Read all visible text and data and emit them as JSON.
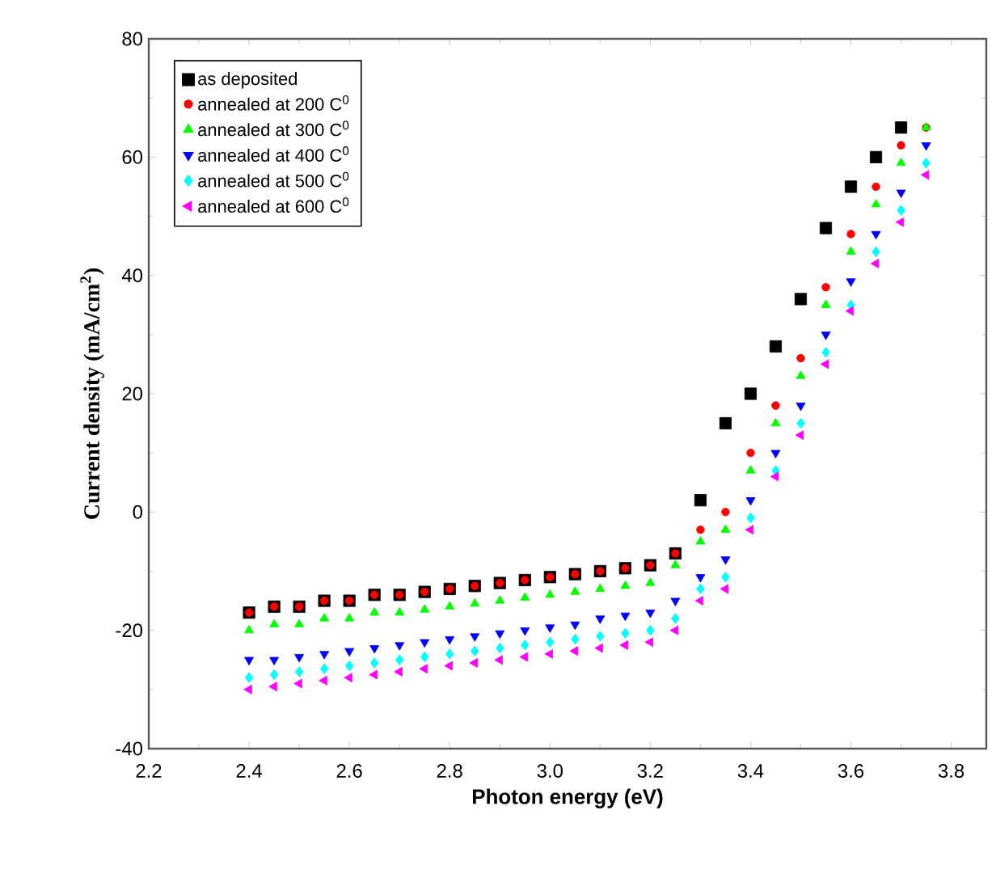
{
  "chart_data": {
    "type": "scatter",
    "xlabel": "Photon energy (eV)",
    "ylabel": "Current density (mA/cm$^{2}$)",
    "x": [
      2.4,
      2.45,
      2.5,
      2.55,
      2.6,
      2.65,
      2.7,
      2.75,
      2.8,
      2.85,
      2.9,
      2.95,
      3.0,
      3.05,
      3.1,
      3.15,
      3.2,
      3.25,
      3.3,
      3.35,
      3.4,
      3.45,
      3.5,
      3.55,
      3.6,
      3.65,
      3.7,
      3.75
    ],
    "xlim": [
      2.2,
      3.87
    ],
    "xticks": [
      2.2,
      2.4,
      2.6,
      2.8,
      {
        "value": 3.0,
        "label": "3.0"
      },
      3.2,
      3.4,
      3.6,
      3.8
    ],
    "ylim": [
      -40,
      80
    ],
    "yticks": [
      -40,
      -20,
      0,
      20,
      40,
      60,
      80
    ],
    "legend": "top left",
    "grid": false,
    "series": [
      {
        "name": "as deposited",
        "color": "#000000",
        "marker": "square",
        "values": [
          -17,
          -16,
          -16,
          -15,
          -15,
          -14,
          -14,
          -13.5,
          -13,
          -12.5,
          -12,
          -11.5,
          -11,
          -10.5,
          -10,
          -9.5,
          -9,
          -7,
          2,
          15,
          20,
          28,
          36,
          48,
          55,
          60,
          65,
          null
        ]
      },
      {
        "name": "annealed at 200 C$^{0}$",
        "color": "#ff0000",
        "marker": "circle",
        "values": [
          -17,
          -16,
          -16,
          -15,
          -15,
          -14,
          -14,
          -13.5,
          -13,
          -12.5,
          -12,
          -11.5,
          -11,
          -10.5,
          -10,
          -9.5,
          -9,
          -7,
          -3,
          0,
          10,
          18,
          26,
          38,
          47,
          55,
          62,
          65
        ]
      },
      {
        "name": "annealed at 300 C$^{0}$",
        "color": "#00ff00",
        "marker": "triangle",
        "values": [
          -20,
          -19,
          -19,
          -18,
          -18,
          -17,
          -17,
          -16.5,
          -16,
          -15.5,
          -15,
          -14.5,
          -14,
          -13.5,
          -13,
          -12.5,
          -12,
          -9,
          -5,
          -3,
          7,
          15,
          23,
          35,
          44,
          52,
          59,
          65
        ]
      },
      {
        "name": "annealed at 400 C$^{0}$",
        "color": "#0000ff",
        "marker": "triangle-down",
        "values": [
          -25,
          -25,
          -24.5,
          -24,
          -23.5,
          -23,
          -22.5,
          -22,
          -21.5,
          -21,
          -20.5,
          -20,
          -19.5,
          -19,
          -18,
          -17.5,
          -17,
          -15,
          -11,
          -8,
          2,
          10,
          18,
          30,
          39,
          47,
          54,
          62
        ]
      },
      {
        "name": "annealed at 500 C$^{0}$",
        "color": "#00ffff",
        "marker": "diamond",
        "values": [
          -28,
          -27.5,
          -27,
          -26.5,
          -26,
          -25.5,
          -25,
          -24.5,
          -24,
          -23.5,
          -23,
          -22.5,
          -22,
          -21.5,
          -21,
          -20.5,
          -20,
          -18,
          -13,
          -11,
          -1,
          7,
          15,
          27,
          35,
          44,
          51,
          59
        ]
      },
      {
        "name": "annealed at 600 C$^{0}$",
        "color": "#ff00ff",
        "marker": "triangle-left",
        "values": [
          -30,
          -29.5,
          -29,
          -28.5,
          -28,
          -27.5,
          -27,
          -26.5,
          -26,
          -25.5,
          -25,
          -24.5,
          -24,
          -23.5,
          -23,
          -22.5,
          -22,
          -20,
          -15,
          -13,
          -3,
          6,
          13,
          25,
          34,
          42,
          49,
          57
        ]
      }
    ]
  }
}
